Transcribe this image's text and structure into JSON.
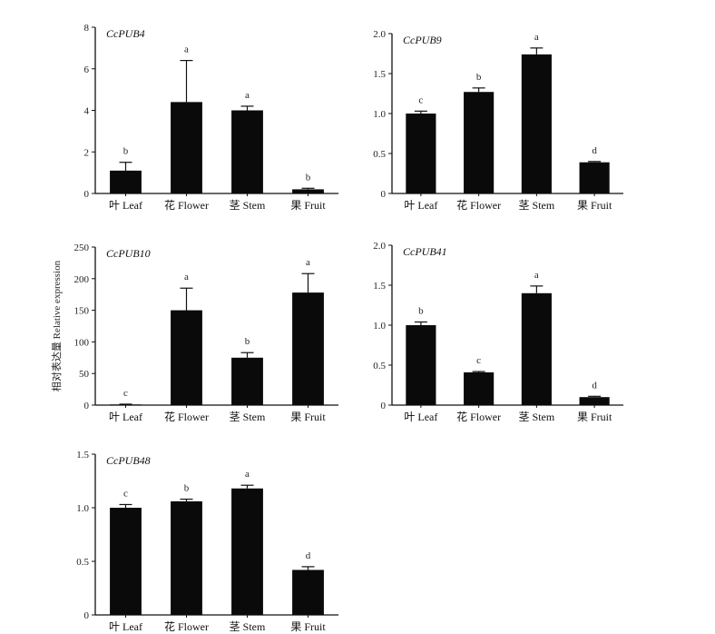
{
  "ylabel": "相对表达量 Relative expression",
  "chart_data": [
    {
      "type": "bar",
      "title": "CcPUB4",
      "categories": [
        "叶 Leaf",
        "花 Flower",
        "茎 Stem",
        "果 Fruit"
      ],
      "values": [
        1.1,
        4.4,
        4.0,
        0.2
      ],
      "errors": [
        0.4,
        2.0,
        0.2,
        0.05
      ],
      "significance": [
        "b",
        "a",
        "a",
        "b"
      ],
      "ylim": [
        0,
        8
      ],
      "yticks": [
        0,
        2,
        4,
        6,
        8
      ],
      "ytick_labels": [
        "0",
        "2",
        "4",
        "6",
        "8"
      ],
      "bar_color": "#0a0a0a"
    },
    {
      "type": "bar",
      "title": "CcPUB9",
      "categories": [
        "叶 Leaf",
        "花 Flower",
        "茎 Stem",
        "果 Fruit"
      ],
      "values": [
        1.0,
        1.27,
        1.74,
        0.39
      ],
      "errors": [
        0.03,
        0.05,
        0.08,
        0.01
      ],
      "significance": [
        "c",
        "b",
        "a",
        "d"
      ],
      "ylim": [
        0,
        2.0
      ],
      "yticks": [
        0,
        0.5,
        1.0,
        1.5,
        2.0
      ],
      "ytick_labels": [
        "0",
        "0.5",
        "1.0",
        "1.5",
        "2.0"
      ],
      "bar_color": "#0a0a0a"
    },
    {
      "type": "bar",
      "title": "CcPUB10",
      "categories": [
        "叶 Leaf",
        "花 Flower",
        "茎 Stem",
        "果 Fruit"
      ],
      "values": [
        1,
        150,
        75,
        178
      ],
      "errors": [
        0.5,
        35,
        8,
        30
      ],
      "significance": [
        "c",
        "a",
        "b",
        "a"
      ],
      "ylim": [
        0,
        250
      ],
      "yticks": [
        0,
        50,
        100,
        150,
        200,
        250
      ],
      "ytick_labels": [
        "0",
        "50",
        "100",
        "150",
        "200",
        "250"
      ],
      "bar_color": "#0a0a0a"
    },
    {
      "type": "bar",
      "title": "CcPUB41",
      "categories": [
        "叶 Leaf",
        "花 Flower",
        "茎 Stem",
        "果 Fruit"
      ],
      "values": [
        1.0,
        0.41,
        1.4,
        0.1
      ],
      "errors": [
        0.04,
        0.01,
        0.09,
        0.01
      ],
      "significance": [
        "b",
        "c",
        "a",
        "d"
      ],
      "ylim": [
        0,
        2.0
      ],
      "yticks": [
        0,
        0.5,
        1.0,
        1.5,
        2.0
      ],
      "ytick_labels": [
        "0",
        "0.5",
        "1.0",
        "1.5",
        "2.0"
      ],
      "bar_color": "#0a0a0a"
    },
    {
      "type": "bar",
      "title": "CcPUB48",
      "categories": [
        "叶 Leaf",
        "花 Flower",
        "茎 Stem",
        "果 Fruit"
      ],
      "values": [
        1.0,
        1.06,
        1.18,
        0.42
      ],
      "errors": [
        0.03,
        0.02,
        0.03,
        0.03
      ],
      "significance": [
        "c",
        "b",
        "a",
        "d"
      ],
      "ylim": [
        0,
        1.5
      ],
      "yticks": [
        0,
        0.5,
        1.0,
        1.5
      ],
      "ytick_labels": [
        "0",
        "0.5",
        "1.0",
        "1.5"
      ],
      "bar_color": "#0a0a0a"
    }
  ]
}
